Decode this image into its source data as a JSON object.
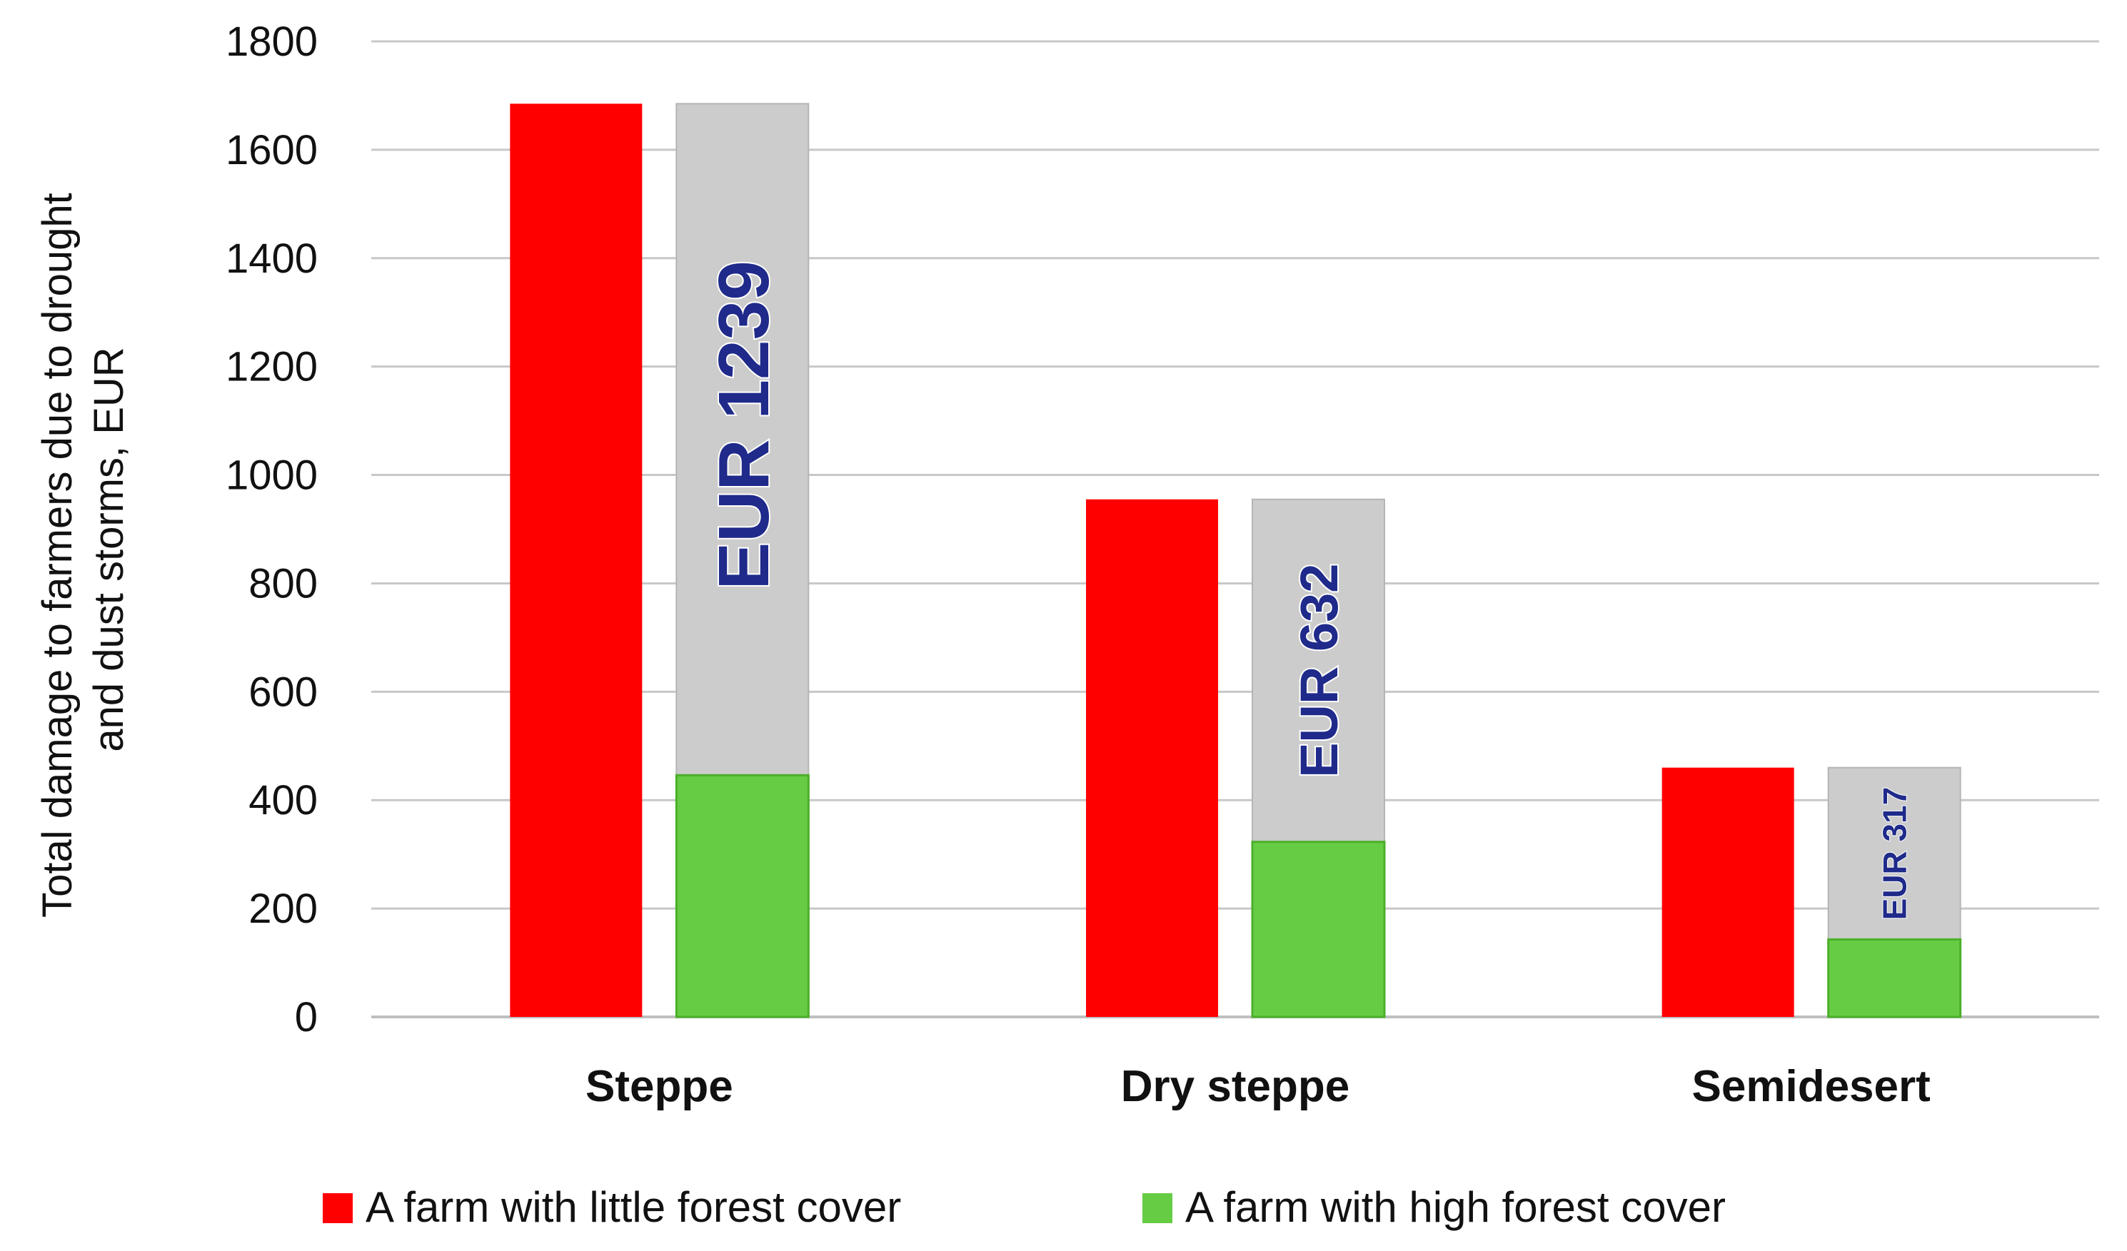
{
  "chart_data": {
    "type": "bar",
    "categories": [
      "Steppe",
      "Dry steppe",
      "Semidesert"
    ],
    "ylabel": [
      "Total damage to farmers due to drought",
      "and dust storms, EUR"
    ],
    "ylim": [
      0,
      1800
    ],
    "yticks": [
      "0",
      "200",
      "400",
      "600",
      "800",
      "1000",
      "1200",
      "1400",
      "1600",
      "1800"
    ],
    "grid": true,
    "legend_position": "bottom",
    "series": [
      {
        "name": "A farm with little forest cover",
        "color": "#ff0000",
        "values": [
          1685,
          955,
          460
        ]
      },
      {
        "name": "A farm with high forest cover",
        "color": "#66cc44",
        "values": [
          446,
          323,
          143
        ]
      }
    ],
    "differences": [
      {
        "label": "EUR 1239",
        "value": 1239
      },
      {
        "label": "EUR 632",
        "value": 632
      },
      {
        "label": "EUR 317",
        "value": 317
      }
    ],
    "difference_color": "#cccccc",
    "difference_text_color": "#1f2a8a"
  }
}
